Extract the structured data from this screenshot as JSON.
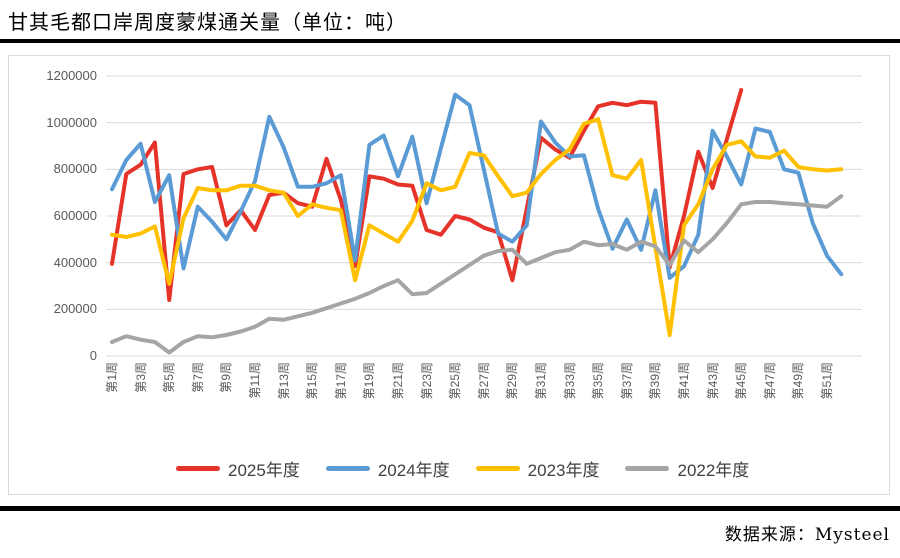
{
  "page": {
    "title": "甘其毛都口岸周度蒙煤通关量（单位：吨）",
    "source": "数据来源：Mysteel"
  },
  "chart_data": {
    "type": "line",
    "title": "甘其毛都口岸周度蒙煤通关量（单位：吨）",
    "unit": "吨",
    "xlabel": "",
    "ylabel": "",
    "ylim": [
      0,
      1200000
    ],
    "y_ticks": [
      0,
      200000,
      400000,
      600000,
      800000,
      1000000,
      1200000
    ],
    "grid": "horizontal",
    "legend_position": "bottom",
    "x_labels_shown": [
      "第1周",
      "第3周",
      "第5周",
      "第7周",
      "第9周",
      "第11周",
      "第13周",
      "第15周",
      "第17周",
      "第19周",
      "第21周",
      "第23周",
      "第25周",
      "第27周",
      "第29周",
      "第31周",
      "第33周",
      "第35周",
      "第37周",
      "第39周",
      "第41周",
      "第43周",
      "第45周",
      "第47周",
      "第49周",
      "第51周"
    ],
    "weeks_total": 52,
    "series": [
      {
        "name": "2025年度",
        "color": "#e6332a",
        "values": [
          395000,
          780000,
          820000,
          915000,
          240000,
          780000,
          800000,
          810000,
          560000,
          625000,
          540000,
          690000,
          700000,
          655000,
          640000,
          845000,
          670000,
          385000,
          770000,
          760000,
          735000,
          730000,
          540000,
          520000,
          600000,
          585000,
          550000,
          530000,
          325000,
          630000,
          935000,
          885000,
          850000,
          965000,
          1070000,
          1085000,
          1075000,
          1090000,
          1085000,
          380000,
          600000,
          875000,
          720000,
          930000,
          1140000
        ]
      },
      {
        "name": "2024年度",
        "color": "#5b9bd5",
        "values": [
          715000,
          840000,
          910000,
          660000,
          775000,
          375000,
          640000,
          575000,
          500000,
          620000,
          750000,
          1025000,
          895000,
          725000,
          725000,
          740000,
          775000,
          410000,
          905000,
          945000,
          770000,
          940000,
          655000,
          890000,
          1120000,
          1075000,
          800000,
          525000,
          490000,
          560000,
          1005000,
          915000,
          855000,
          860000,
          630000,
          460000,
          585000,
          455000,
          710000,
          335000,
          385000,
          520000,
          965000,
          855000,
          735000,
          975000,
          960000,
          800000,
          785000,
          570000,
          430000,
          350000
        ]
      },
      {
        "name": "2023年度",
        "color": "#ffc000",
        "values": [
          520000,
          510000,
          525000,
          555000,
          310000,
          590000,
          720000,
          710000,
          710000,
          730000,
          730000,
          710000,
          700000,
          600000,
          650000,
          635000,
          625000,
          325000,
          560000,
          525000,
          490000,
          580000,
          740000,
          710000,
          725000,
          870000,
          860000,
          770000,
          685000,
          700000,
          780000,
          840000,
          885000,
          995000,
          1015000,
          775000,
          760000,
          840000,
          465000,
          90000,
          560000,
          650000,
          800000,
          905000,
          920000,
          855000,
          850000,
          880000,
          810000,
          800000,
          795000,
          800000
        ]
      },
      {
        "name": "2022年度",
        "color": "#a5a5a5",
        "values": [
          60000,
          85000,
          70000,
          60000,
          15000,
          60000,
          85000,
          80000,
          90000,
          105000,
          125000,
          160000,
          155000,
          170000,
          185000,
          205000,
          225000,
          245000,
          270000,
          300000,
          325000,
          265000,
          270000,
          310000,
          350000,
          390000,
          430000,
          450000,
          455000,
          395000,
          420000,
          445000,
          455000,
          490000,
          475000,
          480000,
          455000,
          490000,
          470000,
          390000,
          495000,
          445000,
          500000,
          570000,
          650000,
          660000,
          660000,
          655000,
          650000,
          645000,
          640000,
          685000
        ]
      }
    ]
  }
}
